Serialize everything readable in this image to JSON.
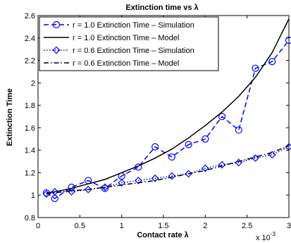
{
  "chart_data": {
    "type": "line",
    "title": "Extinction time vs λ",
    "xlabel": "Contact rate λ",
    "ylabel": "Extinction Time",
    "x_multiplier_label": "x 10",
    "x_multiplier_exp": "-3",
    "xlim": [
      0,
      3
    ],
    "ylim": [
      0.8,
      2.6
    ],
    "x_ticks": [
      "0",
      "0.5",
      "1",
      "1.5",
      "2",
      "2.5",
      "3"
    ],
    "y_ticks": [
      "0.8",
      "1",
      "1.2",
      "1.4",
      "1.6",
      "1.8",
      "2",
      "2.2",
      "2.4",
      "2.6"
    ],
    "legend_position": "top-left",
    "series": [
      {
        "name": "r = 1.0 Extinction Time – Simulation",
        "color": "#0000ff",
        "dash": "dashed",
        "marker": "circle",
        "x": [
          0.1,
          0.2,
          0.4,
          0.6,
          0.8,
          1.0,
          1.2,
          1.4,
          1.6,
          1.8,
          2.0,
          2.2,
          2.4,
          2.6,
          2.8,
          3.0
        ],
        "y": [
          1.02,
          0.97,
          1.07,
          1.13,
          1.06,
          1.17,
          1.25,
          1.43,
          1.34,
          1.45,
          1.5,
          1.7,
          1.58,
          2.13,
          2.19,
          2.38
        ]
      },
      {
        "name": "r = 1.0 Extinction Time – Model",
        "color": "#000000",
        "dash": "solid",
        "marker": "none",
        "x": [
          0.1,
          0.2,
          0.4,
          0.6,
          0.8,
          1.0,
          1.2,
          1.4,
          1.6,
          1.8,
          2.0,
          2.2,
          2.4,
          2.6,
          2.8,
          3.0
        ],
        "y": [
          1.02,
          1.03,
          1.06,
          1.1,
          1.14,
          1.2,
          1.26,
          1.33,
          1.41,
          1.51,
          1.62,
          1.74,
          1.88,
          2.05,
          2.27,
          2.57
        ]
      },
      {
        "name": "r = 0.6 Extinction Time – Simulation",
        "color": "#0000ff",
        "dash": "dotted",
        "marker": "diamond",
        "x": [
          0.1,
          0.2,
          0.4,
          0.6,
          0.8,
          1.0,
          1.2,
          1.4,
          1.6,
          1.8,
          2.0,
          2.2,
          2.4,
          2.6,
          2.8,
          3.0
        ],
        "y": [
          1.01,
          1.03,
          1.03,
          1.05,
          1.07,
          1.11,
          1.13,
          1.15,
          1.17,
          1.19,
          1.24,
          1.27,
          1.29,
          1.33,
          1.36,
          1.43
        ]
      },
      {
        "name": "r = 0.6 Extinction Time – Model",
        "color": "#000000",
        "dash": "dashdot",
        "marker": "none",
        "x": [
          0.1,
          0.2,
          0.4,
          0.6,
          0.8,
          1.0,
          1.2,
          1.4,
          1.6,
          1.8,
          2.0,
          2.2,
          2.4,
          2.6,
          2.8,
          3.0
        ],
        "y": [
          1.01,
          1.02,
          1.04,
          1.05,
          1.07,
          1.09,
          1.11,
          1.13,
          1.16,
          1.19,
          1.22,
          1.26,
          1.3,
          1.34,
          1.38,
          1.44
        ]
      }
    ]
  }
}
